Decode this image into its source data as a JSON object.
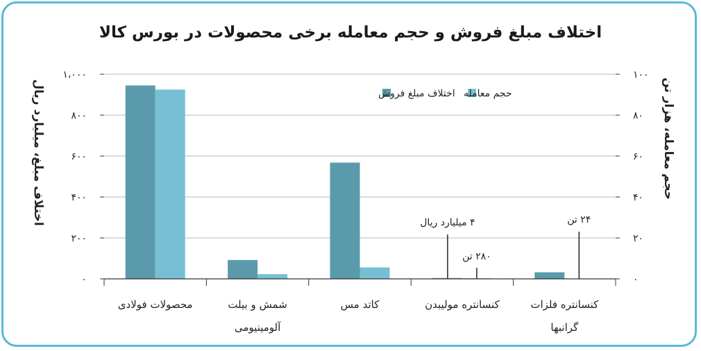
{
  "chart_data": {
    "type": "bar",
    "title": "اختلاف مبلغ فروش و حجم معامله برخی محصولات در بورس کالا",
    "ylabel_left": "اختلاف مبلغ، میلیارد ریال",
    "ylabel_right": "حجم معامله، هزار تن",
    "ylim_left": [
      0,
      1000
    ],
    "ylim_right": [
      0,
      100
    ],
    "left_ticks": [
      "۰",
      "۲۰۰",
      "۴۰۰",
      "۶۰۰",
      "۸۰۰",
      "۱،۰۰۰"
    ],
    "right_ticks": [
      "۰",
      "۲۰",
      "۴۰",
      "۶۰",
      "۸۰",
      "۱۰۰"
    ],
    "categories": [
      [
        "محصولات فولادی"
      ],
      [
        "شمش و بیلت",
        "آلومینیومی"
      ],
      [
        "کاتد مس"
      ],
      [
        "کنسانتره مولیبدن"
      ],
      [
        "کنسانتره فلزات",
        "گرانبها"
      ]
    ],
    "series": [
      {
        "name": "اختلاف مبلغ فروش",
        "axis": "left",
        "color": "#5b9aaa",
        "values": [
          945,
          92,
          568,
          4,
          32
        ]
      },
      {
        "name": "حجم معامله",
        "axis": "right",
        "color": "#77c0d4",
        "values": [
          92.5,
          2.3,
          5.6,
          0.28,
          0.024
        ]
      }
    ],
    "annotations": [
      {
        "text": "۴ میلیارد ریال",
        "category": 3
      },
      {
        "text": "۲۸۰ تن",
        "category": 3
      },
      {
        "text": "۲۴ تن",
        "category": 4
      }
    ],
    "legend": "top-center",
    "grid": true
  }
}
